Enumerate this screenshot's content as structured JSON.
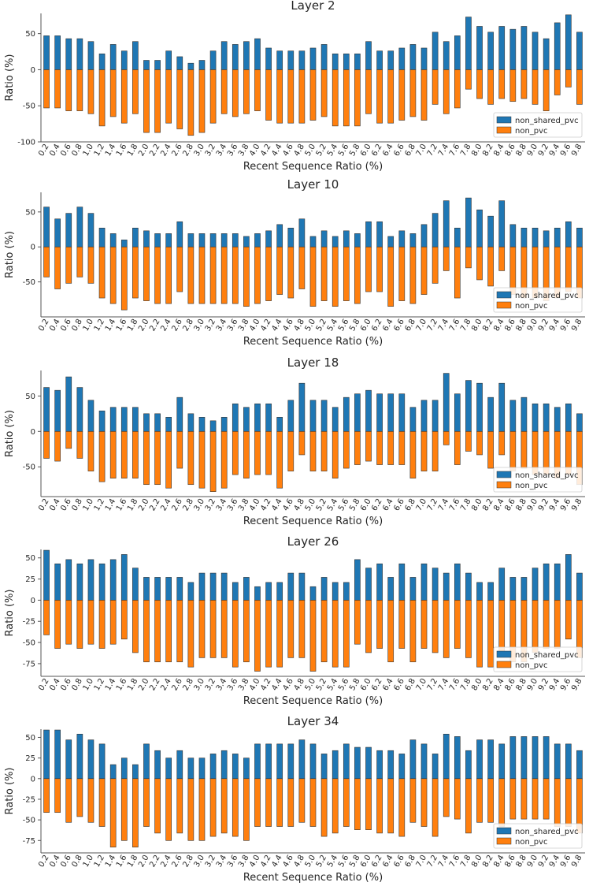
{
  "colors": {
    "non_shared_pvc": "#1f77b4",
    "non_pvc": "#ff7f0e",
    "bar_edge": "#333333",
    "axis": "#555555"
  },
  "chart_data": [
    {
      "type": "bar",
      "title": "Layer 2",
      "xlabel": "Recent Sequence Ratio (%)",
      "ylabel": "Ratio (%)",
      "ylim": [
        -100,
        78
      ],
      "yticks": [
        50,
        0,
        -50,
        -100
      ],
      "legend_position": "lower-right",
      "categories": [
        "0.2",
        "0.4",
        "0.6",
        "0.8",
        "1.0",
        "1.2",
        "1.4",
        "1.6",
        "1.8",
        "2.0",
        "2.2",
        "2.4",
        "2.6",
        "2.8",
        "3.0",
        "3.2",
        "3.4",
        "3.6",
        "3.8",
        "4.0",
        "4.2",
        "4.4",
        "4.6",
        "4.8",
        "5.0",
        "5.2",
        "5.4",
        "5.6",
        "5.8",
        "6.0",
        "6.2",
        "6.4",
        "6.6",
        "6.8",
        "7.0",
        "7.2",
        "7.4",
        "7.6",
        "7.8",
        "8.0",
        "8.2",
        "8.4",
        "8.6",
        "8.8",
        "9.0",
        "9.2",
        "9.4",
        "9.6",
        "9.8"
      ],
      "series": [
        {
          "name": "non_shared_pvc",
          "values": [
            47,
            47,
            43,
            43,
            39,
            22,
            35,
            26,
            39,
            13,
            13,
            26,
            18,
            9,
            13,
            26,
            39,
            35,
            39,
            43,
            30,
            26,
            26,
            26,
            30,
            35,
            22,
            22,
            22,
            39,
            26,
            26,
            30,
            35,
            30,
            52,
            39,
            47,
            73,
            60,
            52,
            60,
            56,
            60,
            52,
            43,
            65,
            76,
            52
          ]
        },
        {
          "name": "non_pvc",
          "values": [
            -53,
            -53,
            -57,
            -57,
            -61,
            -78,
            -65,
            -74,
            -61,
            -87,
            -87,
            -74,
            -82,
            -91,
            -87,
            -74,
            -61,
            -65,
            -61,
            -57,
            -70,
            -74,
            -74,
            -74,
            -70,
            -65,
            -78,
            -78,
            -78,
            -61,
            -74,
            -74,
            -70,
            -65,
            -70,
            -48,
            -61,
            -53,
            -27,
            -40,
            -48,
            -40,
            -44,
            -40,
            -48,
            -57,
            -35,
            -24,
            -48
          ]
        }
      ]
    },
    {
      "type": "bar",
      "title": "Layer 10",
      "xlabel": "Recent Sequence Ratio (%)",
      "ylabel": "Ratio (%)",
      "ylim": [
        -100,
        78
      ],
      "yticks": [
        50,
        0,
        -50
      ],
      "legend_position": "lower-right",
      "categories": [
        "0.2",
        "0.4",
        "0.6",
        "0.8",
        "1.0",
        "1.2",
        "1.4",
        "1.6",
        "1.8",
        "2.0",
        "2.2",
        "2.4",
        "2.6",
        "2.8",
        "3.0",
        "3.2",
        "3.4",
        "3.6",
        "3.8",
        "4.0",
        "4.2",
        "4.4",
        "4.6",
        "4.8",
        "5.0",
        "5.2",
        "5.4",
        "5.6",
        "5.8",
        "6.0",
        "6.2",
        "6.4",
        "6.6",
        "6.8",
        "7.0",
        "7.2",
        "7.4",
        "7.6",
        "7.8",
        "8.0",
        "8.2",
        "8.4",
        "8.6",
        "8.8",
        "9.0",
        "9.2",
        "9.4",
        "9.6",
        "9.8"
      ],
      "series": [
        {
          "name": "non_shared_pvc",
          "values": [
            57,
            40,
            48,
            57,
            48,
            27,
            19,
            10,
            27,
            23,
            19,
            19,
            36,
            19,
            19,
            19,
            19,
            19,
            15,
            19,
            23,
            32,
            27,
            40,
            15,
            23,
            15,
            23,
            19,
            36,
            36,
            15,
            23,
            19,
            32,
            48,
            66,
            27,
            70,
            53,
            44,
            66,
            32,
            27,
            27,
            23,
            27,
            36,
            27
          ]
        },
        {
          "name": "non_pvc",
          "values": [
            -43,
            -60,
            -52,
            -43,
            -52,
            -73,
            -81,
            -90,
            -73,
            -77,
            -81,
            -81,
            -64,
            -81,
            -81,
            -81,
            -81,
            -81,
            -85,
            -81,
            -77,
            -68,
            -73,
            -60,
            -85,
            -77,
            -85,
            -77,
            -81,
            -64,
            -64,
            -85,
            -77,
            -81,
            -68,
            -52,
            -34,
            -73,
            -30,
            -47,
            -56,
            -34,
            -68,
            -73,
            -73,
            -77,
            -73,
            -64,
            -73
          ]
        }
      ]
    },
    {
      "type": "bar",
      "title": "Layer 18",
      "xlabel": "Recent Sequence Ratio (%)",
      "ylabel": "Ratio (%)",
      "ylim": [
        -92,
        86
      ],
      "yticks": [
        50,
        0,
        -50
      ],
      "legend_position": "lower-right",
      "categories": [
        "0.2",
        "0.4",
        "0.6",
        "0.8",
        "1.0",
        "1.2",
        "1.4",
        "1.6",
        "1.8",
        "2.0",
        "2.2",
        "2.4",
        "2.6",
        "2.8",
        "3.0",
        "3.2",
        "3.4",
        "3.6",
        "3.8",
        "4.0",
        "4.2",
        "4.4",
        "4.6",
        "4.8",
        "5.0",
        "5.2",
        "5.4",
        "5.6",
        "5.8",
        "6.0",
        "6.2",
        "6.4",
        "6.6",
        "6.8",
        "7.0",
        "7.2",
        "7.4",
        "7.6",
        "7.8",
        "8.0",
        "8.2",
        "8.4",
        "8.6",
        "8.8",
        "9.0",
        "9.2",
        "9.4",
        "9.6",
        "9.8"
      ],
      "series": [
        {
          "name": "non_shared_pvc",
          "values": [
            62,
            58,
            77,
            62,
            44,
            29,
            34,
            34,
            34,
            25,
            25,
            20,
            48,
            25,
            20,
            15,
            20,
            39,
            34,
            39,
            39,
            20,
            44,
            68,
            44,
            44,
            34,
            48,
            53,
            58,
            53,
            53,
            53,
            34,
            44,
            44,
            82,
            53,
            72,
            68,
            48,
            68,
            44,
            48,
            39,
            39,
            34,
            39,
            25
          ]
        },
        {
          "name": "non_pvc",
          "values": [
            -38,
            -42,
            -24,
            -38,
            -56,
            -71,
            -66,
            -66,
            -66,
            -75,
            -75,
            -80,
            -52,
            -75,
            -80,
            -85,
            -80,
            -61,
            -66,
            -61,
            -61,
            -80,
            -56,
            -33,
            -56,
            -56,
            -66,
            -52,
            -47,
            -42,
            -47,
            -47,
            -47,
            -66,
            -56,
            -56,
            -19,
            -47,
            -28,
            -33,
            -52,
            -33,
            -56,
            -52,
            -61,
            -61,
            -66,
            -61,
            -75
          ]
        }
      ]
    },
    {
      "type": "bar",
      "title": "Layer 26",
      "xlabel": "Recent Sequence Ratio (%)",
      "ylabel": "Ratio (%)",
      "ylim": [
        -90,
        60
      ],
      "yticks": [
        50,
        25,
        0,
        -25,
        -50,
        -75
      ],
      "legend_position": "lower-right",
      "categories": [
        "0.2",
        "0.4",
        "0.6",
        "0.8",
        "1.0",
        "1.2",
        "1.4",
        "1.6",
        "1.8",
        "2.0",
        "2.2",
        "2.4",
        "2.6",
        "2.8",
        "3.0",
        "3.2",
        "3.4",
        "3.6",
        "3.8",
        "4.0",
        "4.2",
        "4.4",
        "4.6",
        "4.8",
        "5.0",
        "5.2",
        "5.4",
        "5.6",
        "5.8",
        "6.0",
        "6.2",
        "6.4",
        "6.6",
        "6.8",
        "7.0",
        "7.2",
        "7.4",
        "7.6",
        "7.8",
        "8.0",
        "8.2",
        "8.4",
        "8.6",
        "8.8",
        "9.0",
        "9.2",
        "9.4",
        "9.6",
        "9.8"
      ],
      "series": [
        {
          "name": "non_shared_pvc",
          "values": [
            59,
            43,
            48,
            43,
            48,
            43,
            48,
            54,
            38,
            27,
            27,
            27,
            27,
            21,
            32,
            32,
            32,
            21,
            27,
            16,
            21,
            21,
            32,
            32,
            16,
            27,
            21,
            21,
            48,
            38,
            43,
            27,
            43,
            27,
            43,
            38,
            32,
            43,
            32,
            21,
            21,
            38,
            27,
            27,
            38,
            43,
            43,
            54,
            32
          ]
        },
        {
          "name": "non_pvc",
          "values": [
            -41,
            -57,
            -52,
            -57,
            -52,
            -57,
            -52,
            -46,
            -62,
            -73,
            -73,
            -73,
            -73,
            -79,
            -68,
            -68,
            -68,
            -79,
            -73,
            -84,
            -79,
            -79,
            -68,
            -68,
            -84,
            -73,
            -79,
            -79,
            -52,
            -62,
            -57,
            -73,
            -57,
            -73,
            -57,
            -62,
            -68,
            -57,
            -68,
            -79,
            -79,
            -62,
            -73,
            -73,
            -62,
            -57,
            -57,
            -46,
            -68
          ]
        }
      ]
    },
    {
      "type": "bar",
      "title": "Layer 34",
      "xlabel": "Recent Sequence Ratio (%)",
      "ylabel": "Ratio (%)",
      "ylim": [
        -90,
        60
      ],
      "yticks": [
        50,
        25,
        0,
        -25,
        -50,
        -75
      ],
      "legend_position": "lower-right",
      "categories": [
        "0.2",
        "0.4",
        "0.6",
        "0.8",
        "1.0",
        "1.2",
        "1.4",
        "1.6",
        "1.8",
        "2.0",
        "2.2",
        "2.4",
        "2.6",
        "2.8",
        "3.0",
        "3.2",
        "3.4",
        "3.6",
        "3.8",
        "4.0",
        "4.2",
        "4.4",
        "4.6",
        "4.8",
        "5.0",
        "5.2",
        "5.4",
        "5.6",
        "5.8",
        "6.0",
        "6.2",
        "6.4",
        "6.6",
        "6.8",
        "7.0",
        "7.2",
        "7.4",
        "7.6",
        "7.8",
        "8.0",
        "8.2",
        "8.4",
        "8.6",
        "8.8",
        "9.0",
        "9.2",
        "9.4",
        "9.6",
        "9.8"
      ],
      "series": [
        {
          "name": "non_shared_pvc",
          "values": [
            59,
            59,
            47,
            54,
            47,
            42,
            17,
            25,
            17,
            42,
            34,
            25,
            34,
            25,
            25,
            30,
            34,
            30,
            25,
            42,
            42,
            42,
            42,
            47,
            42,
            30,
            34,
            42,
            38,
            38,
            34,
            34,
            30,
            47,
            42,
            30,
            54,
            51,
            34,
            47,
            47,
            42,
            51,
            51,
            51,
            51,
            42,
            42,
            34
          ]
        },
        {
          "name": "non_pvc",
          "values": [
            -41,
            -41,
            -53,
            -46,
            -53,
            -58,
            -83,
            -75,
            -83,
            -58,
            -66,
            -75,
            -66,
            -75,
            -75,
            -70,
            -66,
            -70,
            -75,
            -58,
            -58,
            -58,
            -58,
            -53,
            -58,
            -70,
            -66,
            -58,
            -62,
            -62,
            -66,
            -66,
            -70,
            -53,
            -58,
            -70,
            -46,
            -49,
            -66,
            -53,
            -53,
            -58,
            -49,
            -49,
            -49,
            -49,
            -58,
            -58,
            -66
          ]
        }
      ]
    }
  ]
}
